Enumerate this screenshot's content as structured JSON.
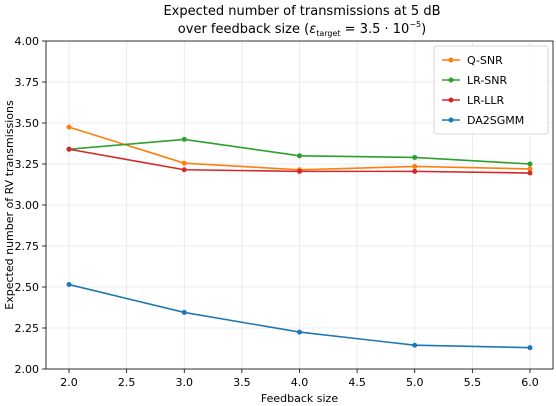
{
  "chart_data": {
    "type": "line",
    "title_line1": "Expected number of transmissions at 5 dB",
    "title_line2_prefix": "over feedback size (",
    "title_epsilon": "ε",
    "title_subscript": "target",
    "title_equals": " = 3.5 · 10",
    "title_superscript": "−5",
    "title_suffix": ")",
    "xlabel": "Feedback size",
    "ylabel": "Expected number of RV transmissions",
    "xlim": [
      1.8,
      6.2
    ],
    "ylim": [
      2.0,
      4.0
    ],
    "x_ticks": [
      2.0,
      2.5,
      3.0,
      3.5,
      4.0,
      4.5,
      5.0,
      5.5,
      6.0
    ],
    "y_ticks": [
      2.0,
      2.25,
      2.5,
      2.75,
      3.0,
      3.25,
      3.5,
      3.75,
      4.0
    ],
    "grid": true,
    "legend_position": "top-right",
    "x": [
      2,
      3,
      4,
      5,
      6
    ],
    "series": [
      {
        "name": "Q-SNR",
        "color": "#ff7f0e",
        "values": [
          3.475,
          3.255,
          3.215,
          3.235,
          3.22
        ]
      },
      {
        "name": "LR-SNR",
        "color": "#2ca02c",
        "values": [
          3.34,
          3.4,
          3.3,
          3.29,
          3.25
        ]
      },
      {
        "name": "LR-LLR",
        "color": "#d62728",
        "values": [
          3.34,
          3.215,
          3.205,
          3.205,
          3.195
        ]
      },
      {
        "name": "DA2SGMM",
        "color": "#1f77b4",
        "values": [
          2.515,
          2.345,
          2.225,
          2.145,
          2.13
        ]
      }
    ]
  }
}
